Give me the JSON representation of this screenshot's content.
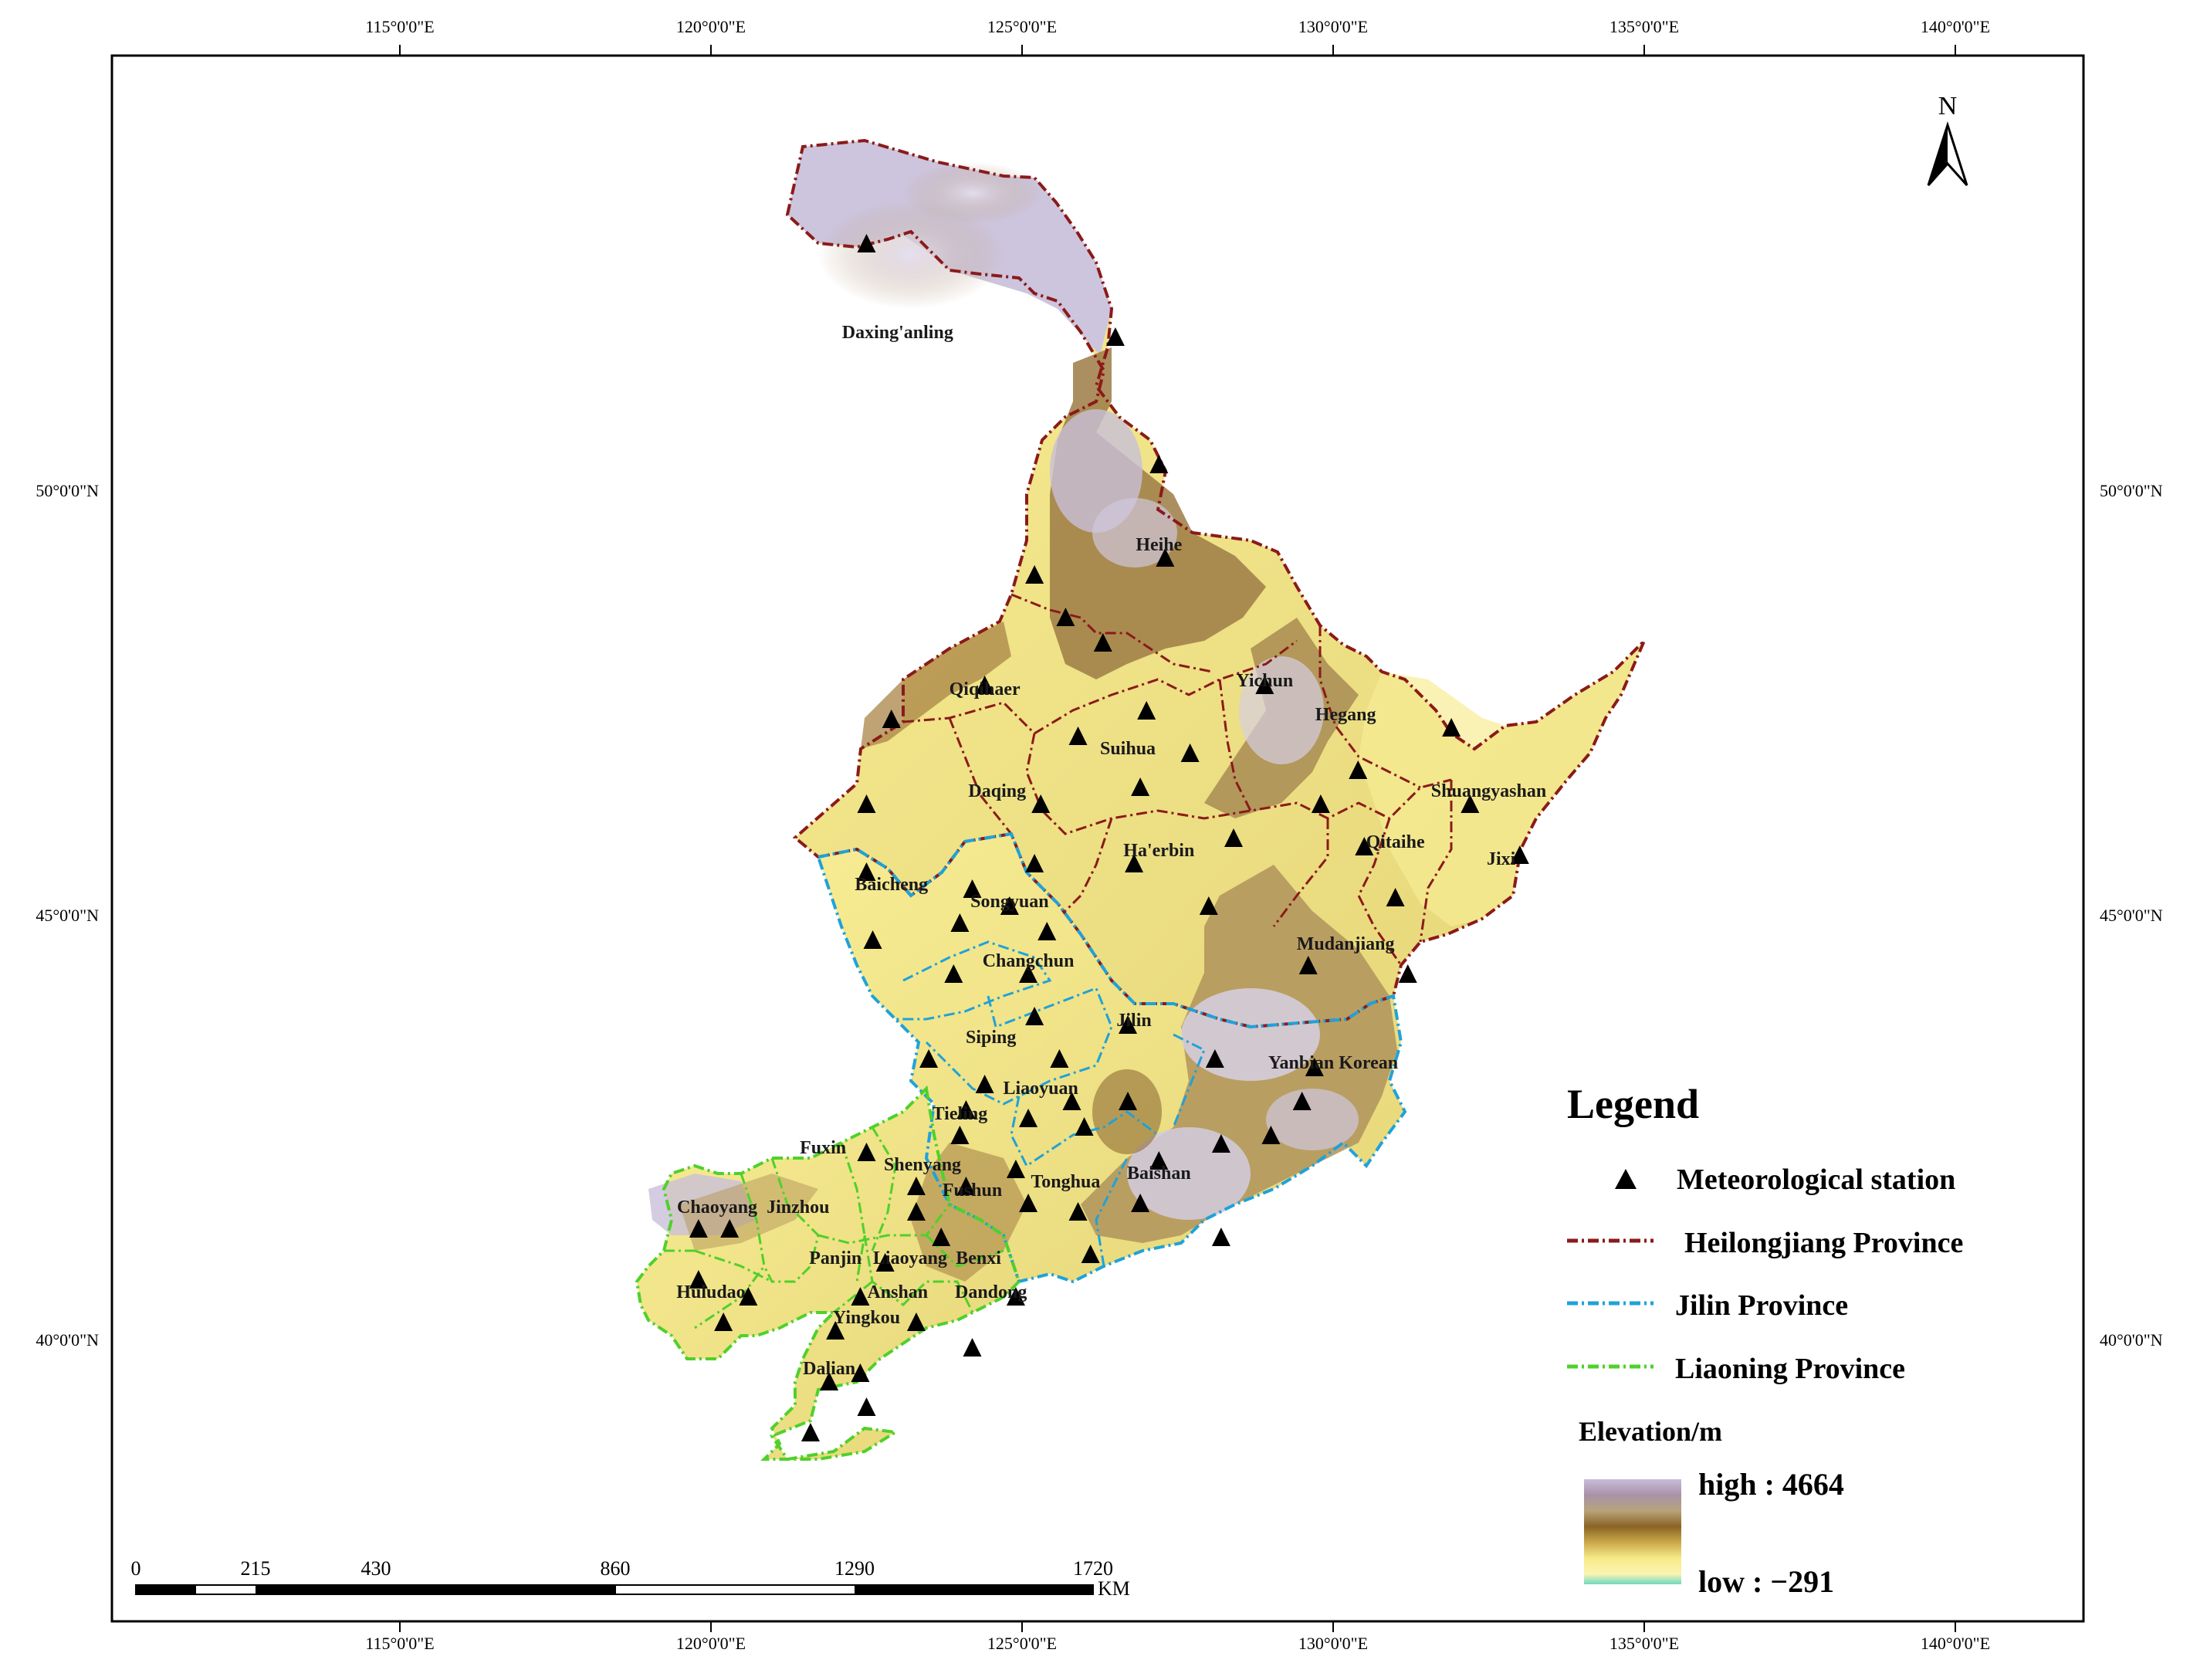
{
  "graticule": {
    "lon_labels": [
      "115°0'0\"E",
      "120°0'0\"E",
      "125°0'0\"E",
      "130°0'0\"E",
      "135°0'0\"E",
      "140°0'0\"E"
    ],
    "lat_labels": [
      "50°0'0\"N",
      "45°0'0\"N",
      "40°0'0\"N"
    ]
  },
  "north_arrow": {
    "label": "N"
  },
  "cities": [
    {
      "name": "Daxing'anling",
      "lon": 123.0,
      "lat": 51.8
    },
    {
      "name": "Heihe",
      "lon": 127.2,
      "lat": 49.3
    },
    {
      "name": "Qiqihaer",
      "lon": 124.4,
      "lat": 47.6
    },
    {
      "name": "Yichun",
      "lon": 128.9,
      "lat": 47.7
    },
    {
      "name": "Hegang",
      "lon": 130.2,
      "lat": 47.3
    },
    {
      "name": "Suihua",
      "lon": 126.7,
      "lat": 46.9
    },
    {
      "name": "Shuangyashan",
      "lon": 132.5,
      "lat": 46.4
    },
    {
      "name": "Daqing",
      "lon": 124.6,
      "lat": 46.4
    },
    {
      "name": "Qitaihe",
      "lon": 131.0,
      "lat": 45.8
    },
    {
      "name": "Jixi",
      "lon": 132.7,
      "lat": 45.6
    },
    {
      "name": "Ha'erbin",
      "lon": 127.2,
      "lat": 45.7
    },
    {
      "name": "Baicheng",
      "lon": 122.9,
      "lat": 45.3
    },
    {
      "name": "Songyuan",
      "lon": 124.8,
      "lat": 45.1
    },
    {
      "name": "Mudanjiang",
      "lon": 130.2,
      "lat": 44.6
    },
    {
      "name": "Changchun",
      "lon": 125.1,
      "lat": 44.4
    },
    {
      "name": "Jilin",
      "lon": 126.8,
      "lat": 43.7
    },
    {
      "name": "Siping",
      "lon": 124.5,
      "lat": 43.5
    },
    {
      "name": "Yanbian Korean",
      "lon": 130.0,
      "lat": 43.2
    },
    {
      "name": "Liaoyuan",
      "lon": 125.3,
      "lat": 42.9
    },
    {
      "name": "Tieling",
      "lon": 124.0,
      "lat": 42.6
    },
    {
      "name": "Fuxin",
      "lon": 121.8,
      "lat": 42.2
    },
    {
      "name": "Shenyang",
      "lon": 123.4,
      "lat": 42.0
    },
    {
      "name": "Baishan",
      "lon": 127.2,
      "lat": 41.9
    },
    {
      "name": "Tonghua",
      "lon": 125.7,
      "lat": 41.8
    },
    {
      "name": "Fushun",
      "lon": 124.2,
      "lat": 41.7
    },
    {
      "name": "Chaoyang",
      "lon": 120.1,
      "lat": 41.5
    },
    {
      "name": "Jinzhou",
      "lon": 121.4,
      "lat": 41.5
    },
    {
      "name": "Panjin",
      "lon": 122.0,
      "lat": 40.9
    },
    {
      "name": "Liaoyang",
      "lon": 123.2,
      "lat": 40.9
    },
    {
      "name": "Benxi",
      "lon": 124.3,
      "lat": 40.9
    },
    {
      "name": "Huludao",
      "lon": 120.0,
      "lat": 40.5
    },
    {
      "name": "Anshan",
      "lon": 123.0,
      "lat": 40.5
    },
    {
      "name": "Dandong",
      "lon": 124.5,
      "lat": 40.5
    },
    {
      "name": "Yingkou",
      "lon": 122.5,
      "lat": 40.2
    },
    {
      "name": "Dalian",
      "lon": 121.9,
      "lat": 39.6
    }
  ],
  "stations": [
    [
      122.5,
      52.9
    ],
    [
      126.5,
      51.8
    ],
    [
      127.2,
      50.3
    ],
    [
      125.2,
      49.0
    ],
    [
      127.3,
      49.2
    ],
    [
      125.7,
      48.5
    ],
    [
      126.3,
      48.2
    ],
    [
      124.4,
      47.7
    ],
    [
      127.0,
      47.4
    ],
    [
      122.9,
      47.3
    ],
    [
      128.9,
      47.7
    ],
    [
      131.9,
      47.2
    ],
    [
      125.9,
      47.1
    ],
    [
      127.7,
      46.9
    ],
    [
      126.9,
      46.5
    ],
    [
      130.4,
      46.7
    ],
    [
      122.5,
      46.3
    ],
    [
      125.3,
      46.3
    ],
    [
      129.8,
      46.3
    ],
    [
      132.2,
      46.3
    ],
    [
      128.4,
      45.9
    ],
    [
      130.5,
      45.8
    ],
    [
      133.0,
      45.7
    ],
    [
      122.5,
      45.5
    ],
    [
      125.2,
      45.6
    ],
    [
      124.2,
      45.3
    ],
    [
      126.8,
      45.6
    ],
    [
      128.0,
      45.1
    ],
    [
      131.0,
      45.2
    ],
    [
      124.8,
      45.1
    ],
    [
      124.0,
      44.9
    ],
    [
      122.6,
      44.7
    ],
    [
      125.4,
      44.8
    ],
    [
      123.9,
      44.3
    ],
    [
      125.1,
      44.3
    ],
    [
      129.6,
      44.4
    ],
    [
      131.2,
      44.3
    ],
    [
      125.2,
      43.8
    ],
    [
      126.7,
      43.7
    ],
    [
      123.5,
      43.3
    ],
    [
      125.6,
      43.3
    ],
    [
      124.4,
      43.0
    ],
    [
      128.1,
      43.3
    ],
    [
      129.7,
      43.2
    ],
    [
      125.8,
      42.8
    ],
    [
      126.7,
      42.8
    ],
    [
      129.5,
      42.8
    ],
    [
      124.1,
      42.7
    ],
    [
      125.1,
      42.6
    ],
    [
      126.0,
      42.5
    ],
    [
      128.2,
      42.3
    ],
    [
      129.0,
      42.4
    ],
    [
      124.0,
      42.4
    ],
    [
      122.5,
      42.2
    ],
    [
      127.2,
      42.1
    ],
    [
      124.9,
      42.0
    ],
    [
      123.3,
      41.8
    ],
    [
      124.1,
      41.8
    ],
    [
      125.1,
      41.6
    ],
    [
      126.9,
      41.6
    ],
    [
      125.9,
      41.5
    ],
    [
      123.3,
      41.5
    ],
    [
      119.8,
      41.3
    ],
    [
      120.3,
      41.3
    ],
    [
      128.2,
      41.2
    ],
    [
      126.1,
      41.0
    ],
    [
      123.7,
      41.2
    ],
    [
      122.8,
      40.9
    ],
    [
      119.8,
      40.7
    ],
    [
      120.6,
      40.5
    ],
    [
      122.4,
      40.5
    ],
    [
      124.9,
      40.5
    ],
    [
      120.2,
      40.2
    ],
    [
      123.3,
      40.2
    ],
    [
      122.0,
      40.1
    ],
    [
      124.2,
      39.9
    ],
    [
      122.4,
      39.6
    ],
    [
      121.9,
      39.5
    ],
    [
      122.5,
      39.2
    ],
    [
      121.6,
      38.9
    ]
  ],
  "legend": {
    "title": "Legend",
    "items": [
      {
        "label": "Meteorological station",
        "kind": "triangle"
      },
      {
        "label": "Heilongjiang Province",
        "kind": "line",
        "color": "#8b1a1a"
      },
      {
        "label": "Jilin Province",
        "kind": "line",
        "color": "#1fa2d9"
      },
      {
        "label": "Liaoning Province",
        "kind": "line",
        "color": "#4fd12a"
      }
    ],
    "elevation_title": "Elevation/m",
    "high_label": "high : 4664",
    "low_label": "low : −291"
  },
  "scale_bar": {
    "ticks": [
      "0",
      "215",
      "430",
      "860",
      "1290",
      "1720"
    ],
    "unit": "KM"
  }
}
